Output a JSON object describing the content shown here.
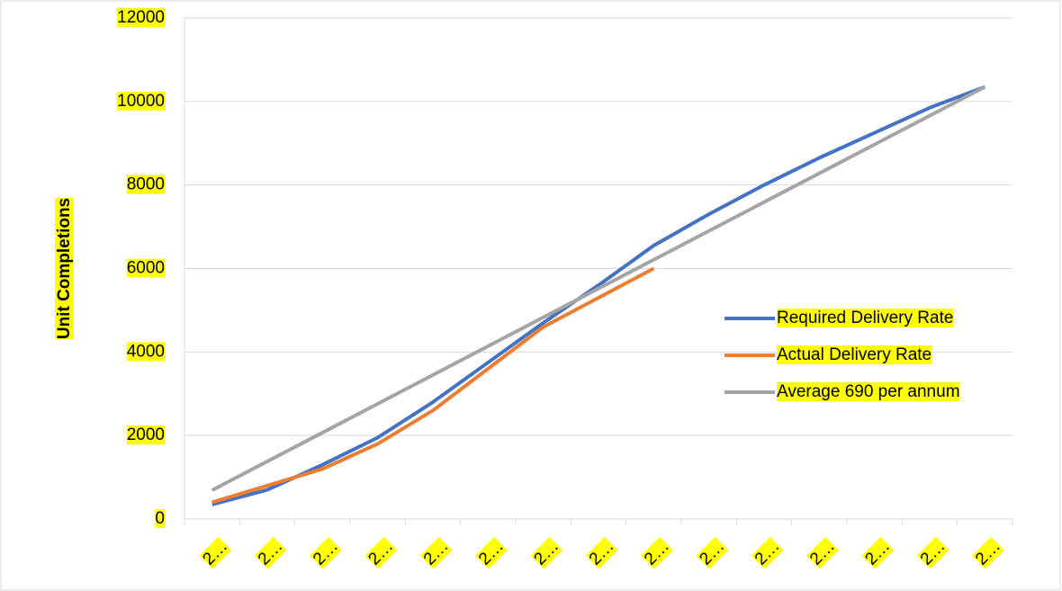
{
  "chart_data": {
    "type": "line",
    "y_label": "Unit Completions",
    "categories": [
      "2…",
      "2…",
      "2…",
      "2…",
      "2…",
      "2…",
      "2…",
      "2…",
      "2…",
      "2…",
      "2…",
      "2…",
      "2…",
      "2…",
      "2…"
    ],
    "series": [
      {
        "name": "Required Delivery Rate",
        "color": "#4472c4",
        "values": [
          350,
          700,
          1300,
          1950,
          2800,
          3750,
          4700,
          5600,
          6550,
          7300,
          8000,
          8650,
          9250,
          9850,
          10350
        ]
      },
      {
        "name": "Actual Delivery Rate",
        "color": "#ed7d31",
        "values": [
          400,
          800,
          1200,
          1800,
          2600,
          3600,
          4600,
          5300,
          6000,
          null,
          null,
          null,
          null,
          null,
          null
        ]
      },
      {
        "name": "Average 690 per annum",
        "color": "#a5a5a5",
        "values": [
          690,
          1380,
          2070,
          2760,
          3450,
          4140,
          4830,
          5520,
          6210,
          6900,
          7590,
          8280,
          8970,
          9660,
          10350
        ]
      }
    ],
    "ylim": [
      0,
      12000
    ],
    "yticks": [
      0,
      2000,
      4000,
      6000,
      8000,
      10000,
      12000
    ],
    "grid": true,
    "legend": "right",
    "label_highlight": "#ffff00"
  }
}
